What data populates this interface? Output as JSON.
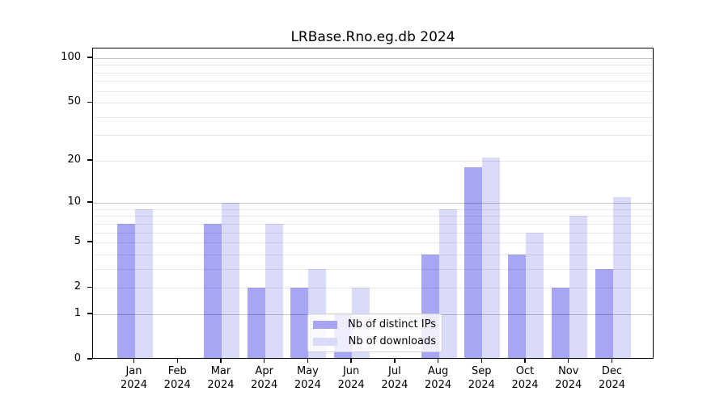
{
  "title": "LRBase.Rno.eg.db 2024",
  "colors": {
    "ips": "#a6a6f4",
    "downloads": "#dadaf9",
    "grid_major": "rgba(0,0,0,0.225)",
    "grid_minor": "rgba(0,0,0,0.085)",
    "axis": "#000000"
  },
  "legend": {
    "items": [
      {
        "label": "Nb of distinct IPs",
        "color_key": "ips"
      },
      {
        "label": "Nb of downloads",
        "color_key": "downloads"
      }
    ]
  },
  "chart_data": {
    "type": "bar",
    "title": "LRBase.Rno.eg.db 2024",
    "categories": [
      "Jan",
      "Feb",
      "Mar",
      "Apr",
      "May",
      "Jun",
      "Jul",
      "Aug",
      "Sep",
      "Oct",
      "Nov",
      "Dec"
    ],
    "year": "2024",
    "series": [
      {
        "name": "Nb of distinct IPs",
        "key": "ips",
        "values": [
          7,
          0,
          7,
          2,
          2,
          1,
          0,
          4,
          18,
          4,
          2,
          3
        ]
      },
      {
        "name": "Nb of downloads",
        "key": "downloads",
        "values": [
          9,
          0,
          10,
          7,
          3,
          2,
          0,
          9,
          21,
          6,
          8,
          11
        ]
      }
    ],
    "xlabel": "",
    "ylabel": "",
    "yscale": "log10(value+1)",
    "ylim": [
      0,
      116
    ],
    "yticks": [
      0,
      1,
      2,
      5,
      10,
      20,
      50,
      100
    ],
    "grid": {
      "major": [
        1,
        10,
        100
      ],
      "minor": [
        2,
        3,
        4,
        5,
        6,
        7,
        8,
        9,
        20,
        30,
        40,
        50,
        60,
        70,
        80,
        90
      ]
    },
    "legend_position": "lower center",
    "grid_on": true
  }
}
